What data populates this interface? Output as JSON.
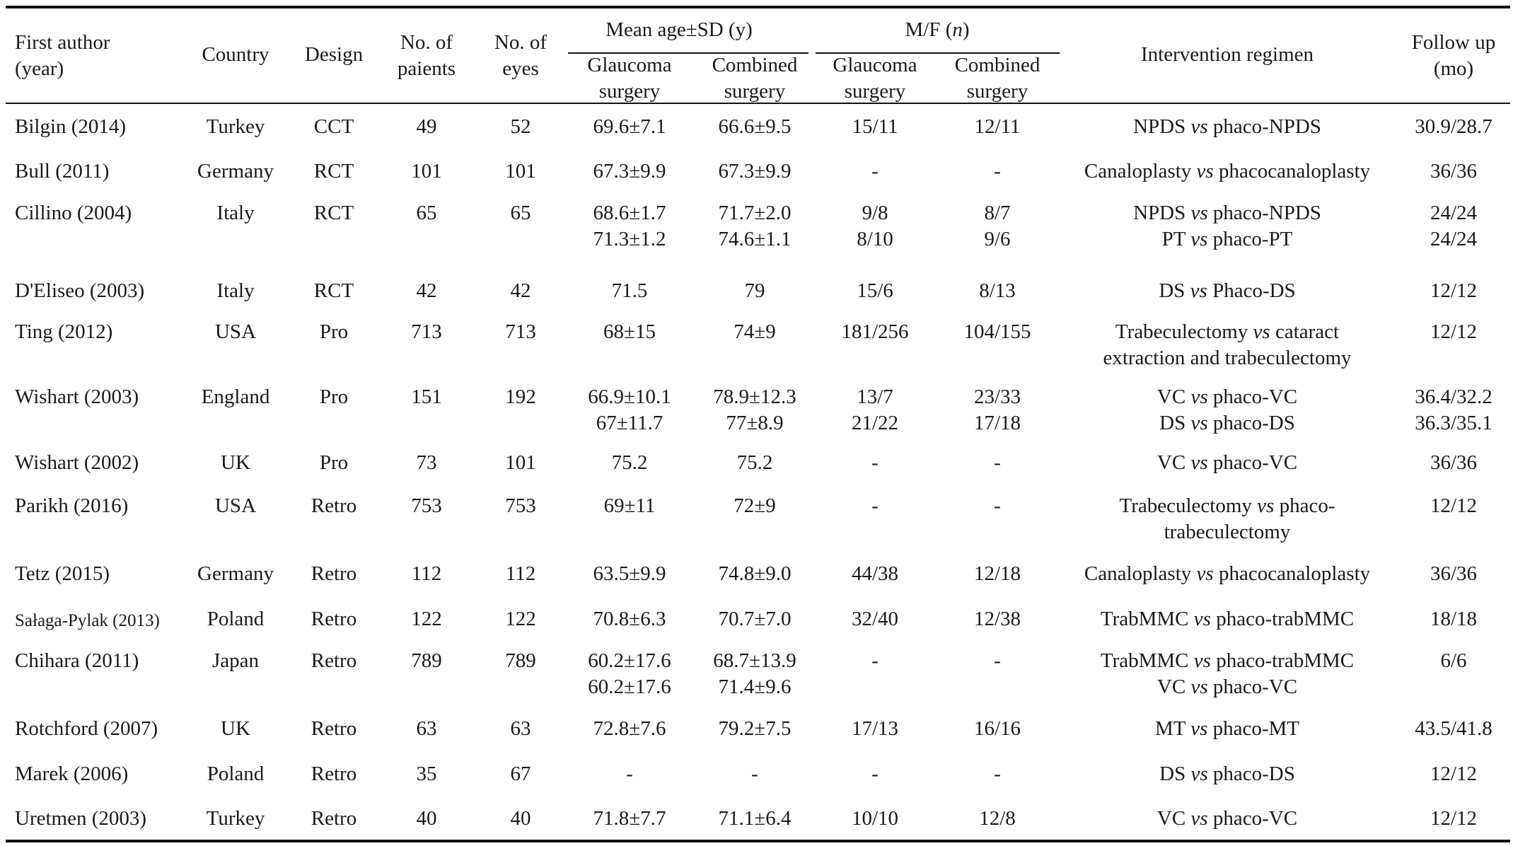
{
  "table": {
    "header": {
      "author": "First author (year)",
      "author_line1": "First author",
      "author_line2": "(year)",
      "country": "Country",
      "design": "Design",
      "patients_line1": "No. of",
      "patients_line2": "paients",
      "eyes_line1": "No. of",
      "eyes_line2": "eyes",
      "mean_age_group": "Mean age±SD (y)",
      "mf_group_prefix": "M/F (",
      "mf_group_n": "n",
      "mf_group_suffix": ")",
      "glaucoma_line1": "Glaucoma",
      "glaucoma_line2": "surgery",
      "combined_line1": "Combined",
      "combined_line2": "surgery",
      "intervention": "Intervention regimen",
      "follow_line1": "Follow up",
      "follow_line2": "(mo)"
    },
    "vs": "vs",
    "rows": [
      {
        "author": "Bilgin (2014)",
        "country": "Turkey",
        "design": "CCT",
        "patients": "49",
        "eyes": "52",
        "age_g": [
          "69.6±7.1"
        ],
        "age_c": [
          "66.6±9.5"
        ],
        "mf_g": [
          "15/11"
        ],
        "mf_c": [
          "12/11"
        ],
        "interv": [
          {
            "a": "NPDS",
            "b": "phaco-NPDS"
          }
        ],
        "follow": [
          "30.9/28.7"
        ]
      },
      {
        "author": "Bull (2011)",
        "country": "Germany",
        "design": "RCT",
        "patients": "101",
        "eyes": "101",
        "age_g": [
          "67.3±9.9"
        ],
        "age_c": [
          "67.3±9.9"
        ],
        "mf_g": [
          "-"
        ],
        "mf_c": [
          "-"
        ],
        "interv": [
          {
            "a": "Canaloplasty",
            "b": "phacocanaloplasty"
          }
        ],
        "follow": [
          "36/36"
        ]
      },
      {
        "author": "Cillino (2004)",
        "country": "Italy",
        "design": "RCT",
        "patients": "65",
        "eyes": "65",
        "age_g": [
          "68.6±1.7",
          "71.3±1.2"
        ],
        "age_c": [
          "71.7±2.0",
          "74.6±1.1"
        ],
        "mf_g": [
          "9/8",
          "8/10"
        ],
        "mf_c": [
          "8/7",
          "9/6"
        ],
        "interv": [
          {
            "a": "NPDS",
            "b": "phaco-NPDS"
          },
          {
            "a": "PT",
            "b": "phaco-PT"
          }
        ],
        "follow": [
          "24/24",
          "24/24"
        ]
      },
      {
        "author": "D'Eliseo (2003)",
        "country": "Italy",
        "design": "RCT",
        "patients": "42",
        "eyes": "42",
        "age_g": [
          "71.5"
        ],
        "age_c": [
          "79"
        ],
        "mf_g": [
          "15/6"
        ],
        "mf_c": [
          "8/13"
        ],
        "interv": [
          {
            "a": "DS",
            "b": "Phaco-DS"
          }
        ],
        "follow": [
          "12/12"
        ]
      },
      {
        "author": "Ting (2012)",
        "country": "USA",
        "design": "Pro",
        "patients": "713",
        "eyes": "713",
        "age_g": [
          "68±15"
        ],
        "age_c": [
          "74±9"
        ],
        "mf_g": [
          "181/256"
        ],
        "mf_c": [
          "104/155"
        ],
        "interv": [
          {
            "a": "Trabeculectomy",
            "b": "cataract"
          }
        ],
        "interv_extra": "extraction and trabeculectomy",
        "follow": [
          "12/12"
        ]
      },
      {
        "author": "Wishart (2003)",
        "country": "England",
        "design": "Pro",
        "patients": "151",
        "eyes": "192",
        "age_g": [
          "66.9±10.1",
          "67±11.7"
        ],
        "age_c": [
          "78.9±12.3",
          "77±8.9"
        ],
        "mf_g": [
          "13/7",
          "21/22"
        ],
        "mf_c": [
          "23/33",
          "17/18"
        ],
        "interv": [
          {
            "a": "VC",
            "b": "phaco-VC"
          },
          {
            "a": "DS",
            "b": "phaco-DS"
          }
        ],
        "follow": [
          "36.4/32.2",
          "36.3/35.1"
        ]
      },
      {
        "author": "Wishart (2002)",
        "country": "UK",
        "design": "Pro",
        "patients": "73",
        "eyes": "101",
        "age_g": [
          "75.2"
        ],
        "age_c": [
          "75.2"
        ],
        "mf_g": [
          "-"
        ],
        "mf_c": [
          "-"
        ],
        "interv": [
          {
            "a": "VC",
            "b": "phaco-VC"
          }
        ],
        "follow": [
          "36/36"
        ]
      },
      {
        "author": "Parikh (2016)",
        "country": "USA",
        "design": "Retro",
        "patients": "753",
        "eyes": "753",
        "age_g": [
          "69±11"
        ],
        "age_c": [
          "72±9"
        ],
        "mf_g": [
          "-"
        ],
        "mf_c": [
          "-"
        ],
        "interv": [
          {
            "a": "Trabeculectomy",
            "b": "phaco-"
          }
        ],
        "interv_extra": "trabeculectomy",
        "follow": [
          "12/12"
        ]
      },
      {
        "author": "Tetz (2015)",
        "country": "Germany",
        "design": "Retro",
        "patients": "112",
        "eyes": "112",
        "age_g": [
          "63.5±9.9"
        ],
        "age_c": [
          "74.8±9.0"
        ],
        "mf_g": [
          "44/38"
        ],
        "mf_c": [
          "12/18"
        ],
        "interv": [
          {
            "a": "Canaloplasty",
            "b": "phacocanaloplasty"
          }
        ],
        "follow": [
          "36/36"
        ]
      },
      {
        "author": "Sałaga-Pylak (2013)",
        "small": true,
        "country": "Poland",
        "design": "Retro",
        "patients": "122",
        "eyes": "122",
        "age_g": [
          "70.8±6.3"
        ],
        "age_c": [
          "70.7±7.0"
        ],
        "mf_g": [
          "32/40"
        ],
        "mf_c": [
          "12/38"
        ],
        "interv": [
          {
            "a": "TrabMMC",
            "b": "phaco-trabMMC"
          }
        ],
        "follow": [
          "18/18"
        ]
      },
      {
        "author": "Chihara (2011)",
        "country": "Japan",
        "design": "Retro",
        "patients": "789",
        "eyes": "789",
        "age_g": [
          "60.2±17.6",
          "60.2±17.6"
        ],
        "age_c": [
          "68.7±13.9",
          "71.4±9.6"
        ],
        "mf_g": [
          "-"
        ],
        "mf_c": [
          "-"
        ],
        "interv": [
          {
            "a": "TrabMMC",
            "b": "phaco-trabMMC"
          },
          {
            "a": "VC",
            "b": "phaco-VC"
          }
        ],
        "follow": [
          "6/6"
        ]
      },
      {
        "author": "Rotchford (2007)",
        "country": "UK",
        "design": "Retro",
        "patients": "63",
        "eyes": "63",
        "age_g": [
          "72.8±7.6"
        ],
        "age_c": [
          "79.2±7.5"
        ],
        "mf_g": [
          "17/13"
        ],
        "mf_c": [
          "16/16"
        ],
        "interv": [
          {
            "a": "MT",
            "b": "phaco-MT"
          }
        ],
        "follow": [
          "43.5/41.8"
        ]
      },
      {
        "author": "Marek (2006)",
        "country": "Poland",
        "design": "Retro",
        "patients": "35",
        "eyes": "67",
        "age_g": [
          "-"
        ],
        "age_c": [
          "-"
        ],
        "mf_g": [
          "-"
        ],
        "mf_c": [
          "-"
        ],
        "interv": [
          {
            "a": "DS",
            "b": "phaco-DS"
          }
        ],
        "follow": [
          "12/12"
        ]
      },
      {
        "author": "Uretmen (2003)",
        "country": "Turkey",
        "design": "Retro",
        "patients": "40",
        "eyes": "40",
        "age_g": [
          "71.8±7.7"
        ],
        "age_c": [
          "71.1±6.4"
        ],
        "mf_g": [
          "10/10"
        ],
        "mf_c": [
          "12/8"
        ],
        "interv": [
          {
            "a": "VC",
            "b": "phaco-VC"
          }
        ],
        "follow": [
          "12/12"
        ]
      }
    ]
  }
}
